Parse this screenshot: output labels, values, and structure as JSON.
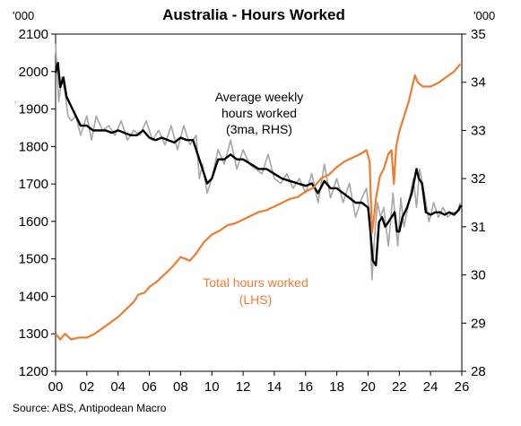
{
  "chart_data": {
    "type": "line",
    "title": "Australia - Hours Worked",
    "source": "Source: ABS, Antipodean Macro",
    "left_unit": "'000",
    "right_unit": "'000",
    "x_ticks": [
      "00",
      "02",
      "04",
      "06",
      "08",
      "10",
      "12",
      "14",
      "16",
      "18",
      "20",
      "22",
      "24",
      "26"
    ],
    "x_range": [
      2000,
      2026
    ],
    "left_axis": {
      "range": [
        1200,
        2100
      ],
      "ticks": [
        "1200",
        "1300",
        "1400",
        "1500",
        "1600",
        "1700",
        "1800",
        "1900",
        "2000",
        "2100"
      ]
    },
    "right_axis": {
      "range": [
        28,
        35
      ],
      "ticks": [
        "28",
        "29",
        "30",
        "31",
        "32",
        "33",
        "34",
        "35"
      ]
    },
    "grid": false,
    "colors": {
      "total": "#ED7D31",
      "monthly": "#A6A6A6",
      "avg3ma": "#000000"
    },
    "series": [
      {
        "name": "Total hours worked (LHS)",
        "axis": "left",
        "x": [
          2000.0,
          2000.3,
          2000.6,
          2001.0,
          2001.5,
          2002.0,
          2002.5,
          2003.0,
          2003.5,
          2004.0,
          2004.5,
          2005.0,
          2005.3,
          2005.7,
          2006.0,
          2006.5,
          2007.0,
          2007.5,
          2008.0,
          2008.3,
          2008.6,
          2009.0,
          2009.5,
          2010.0,
          2010.5,
          2011.0,
          2011.5,
          2012.0,
          2012.5,
          2013.0,
          2013.5,
          2014.0,
          2014.5,
          2015.0,
          2015.5,
          2016.0,
          2016.5,
          2017.0,
          2017.5,
          2018.0,
          2018.5,
          2019.0,
          2019.5,
          2019.9,
          2020.1,
          2020.25,
          2020.35,
          2020.5,
          2020.75,
          2021.0,
          2021.3,
          2021.5,
          2021.65,
          2021.8,
          2022.0,
          2022.3,
          2022.6,
          2023.0,
          2023.2,
          2023.5,
          2024.0,
          2024.5,
          2025.0,
          2025.5,
          2025.9
        ],
        "values": [
          1300,
          1285,
          1300,
          1285,
          1290,
          1290,
          1300,
          1315,
          1330,
          1345,
          1365,
          1385,
          1405,
          1410,
          1425,
          1440,
          1460,
          1480,
          1505,
          1500,
          1495,
          1515,
          1545,
          1565,
          1575,
          1590,
          1595,
          1605,
          1615,
          1625,
          1630,
          1640,
          1650,
          1660,
          1665,
          1680,
          1690,
          1715,
          1725,
          1745,
          1760,
          1770,
          1780,
          1790,
          1760,
          1570,
          1600,
          1660,
          1720,
          1740,
          1780,
          1790,
          1700,
          1800,
          1840,
          1880,
          1920,
          1990,
          1970,
          1960,
          1960,
          1970,
          1985,
          2000,
          2020
        ]
      },
      {
        "name": "Average weekly hours worked",
        "axis": "right",
        "kind": "monthly",
        "x": [
          2000.0,
          2000.1,
          2000.2,
          2000.4,
          2000.6,
          2000.8,
          2001.0,
          2001.3,
          2001.6,
          2002.0,
          2002.3,
          2002.6,
          2003.0,
          2003.4,
          2003.8,
          2004.2,
          2004.6,
          2005.0,
          2005.4,
          2005.8,
          2006.2,
          2006.6,
          2007.0,
          2007.4,
          2007.8,
          2008.2,
          2008.6,
          2009.0,
          2009.2,
          2009.4,
          2009.7,
          2010.0,
          2010.4,
          2010.8,
          2011.2,
          2011.6,
          2012.0,
          2012.4,
          2012.8,
          2013.2,
          2013.6,
          2014.0,
          2014.4,
          2014.8,
          2015.2,
          2015.6,
          2016.0,
          2016.4,
          2016.8,
          2017.2,
          2017.6,
          2018.0,
          2018.4,
          2018.8,
          2019.2,
          2019.6,
          2019.9,
          2020.1,
          2020.25,
          2020.4,
          2020.6,
          2020.8,
          2021.0,
          2021.3,
          2021.6,
          2021.75,
          2021.9,
          2022.1,
          2022.3,
          2022.6,
          2022.9,
          2023.1,
          2023.3,
          2023.6,
          2023.9,
          2024.2,
          2024.5,
          2024.8,
          2025.1,
          2025.4,
          2025.7,
          2025.9
        ],
        "values": [
          34.8,
          34.2,
          33.6,
          34.1,
          33.8,
          33.3,
          33.2,
          33.3,
          32.9,
          33.3,
          32.8,
          33.3,
          33.0,
          33.1,
          32.9,
          33.2,
          32.8,
          33.0,
          32.9,
          33.2,
          32.8,
          33.0,
          32.7,
          33.1,
          32.6,
          33.1,
          32.7,
          32.9,
          32.0,
          32.3,
          31.7,
          32.0,
          32.6,
          32.3,
          32.8,
          32.2,
          32.6,
          32.3,
          32.2,
          32.1,
          32.5,
          32.0,
          31.9,
          32.1,
          31.8,
          32.0,
          31.7,
          32.1,
          31.5,
          32.3,
          31.6,
          32.0,
          31.5,
          31.9,
          31.2,
          31.6,
          31.8,
          31.2,
          29.9,
          30.7,
          31.5,
          31.2,
          31.4,
          30.6,
          31.7,
          31.1,
          30.6,
          31.6,
          31.0,
          31.5,
          32.0,
          31.4,
          32.2,
          31.7,
          31.1,
          31.5,
          31.2,
          31.4,
          31.2,
          31.3,
          31.3,
          31.5
        ]
      },
      {
        "name": "Average weekly hours worked (3ma, RHS)",
        "axis": "right",
        "kind": "3ma",
        "x": [
          2000.0,
          2000.15,
          2000.3,
          2000.5,
          2000.7,
          2001.0,
          2001.3,
          2001.6,
          2002.0,
          2002.4,
          2002.8,
          2003.2,
          2003.6,
          2004.0,
          2004.4,
          2004.8,
          2005.2,
          2005.6,
          2006.0,
          2006.4,
          2006.8,
          2007.2,
          2007.6,
          2008.0,
          2008.4,
          2008.8,
          2009.1,
          2009.4,
          2009.7,
          2010.0,
          2010.4,
          2010.8,
          2011.2,
          2011.6,
          2012.0,
          2012.5,
          2013.0,
          2013.5,
          2014.0,
          2014.5,
          2015.0,
          2015.5,
          2016.0,
          2016.4,
          2016.8,
          2017.2,
          2017.6,
          2018.0,
          2018.4,
          2018.8,
          2019.2,
          2019.6,
          2020.0,
          2020.15,
          2020.3,
          2020.5,
          2020.7,
          2020.9,
          2021.1,
          2021.3,
          2021.5,
          2021.7,
          2021.85,
          2022.0,
          2022.2,
          2022.5,
          2022.8,
          2023.1,
          2023.25,
          2023.45,
          2023.7,
          2024.0,
          2024.3,
          2024.6,
          2024.9,
          2025.2,
          2025.5,
          2025.8,
          2025.95
        ],
        "values": [
          34.2,
          34.4,
          33.9,
          34.1,
          33.7,
          33.5,
          33.3,
          33.1,
          33.1,
          33.0,
          33.0,
          33.0,
          32.95,
          33.0,
          32.95,
          32.9,
          32.9,
          33.0,
          32.85,
          32.8,
          32.85,
          32.8,
          32.75,
          32.85,
          32.8,
          32.8,
          32.5,
          32.2,
          31.9,
          32.0,
          32.4,
          32.4,
          32.5,
          32.4,
          32.4,
          32.3,
          32.2,
          32.2,
          32.1,
          32.0,
          31.95,
          31.9,
          31.85,
          31.9,
          31.7,
          31.95,
          31.8,
          31.8,
          31.7,
          31.6,
          31.5,
          31.5,
          31.4,
          30.9,
          30.3,
          30.2,
          31.1,
          31.2,
          31.0,
          31.1,
          31.2,
          31.3,
          30.9,
          30.9,
          31.2,
          31.4,
          31.7,
          32.2,
          32.0,
          31.9,
          31.3,
          31.25,
          31.3,
          31.3,
          31.25,
          31.3,
          31.25,
          31.35,
          31.45
        ]
      }
    ],
    "annotations": {
      "avg_hours": [
        "Average weekly",
        "hours worked",
        "(3ma, RHS)"
      ],
      "total_hours": [
        "Total hours worked",
        "(LHS)"
      ]
    }
  }
}
